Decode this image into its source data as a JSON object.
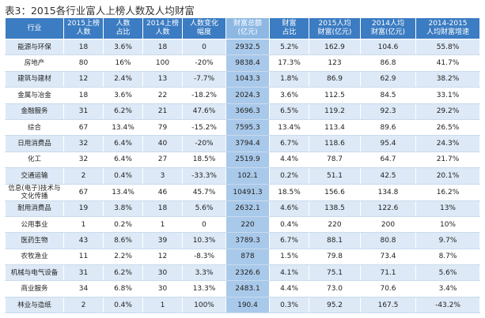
{
  "title": "表3：2015各行业富人上榜人数及人均财富",
  "table": {
    "header": [
      [
        "行业"
      ],
      [
        "2015上榜",
        "人数"
      ],
      [
        "人数",
        "占比"
      ],
      [
        "2014上榜",
        "人数"
      ],
      [
        "人数变化",
        "幅度"
      ],
      [
        "财富总额",
        "(亿元)"
      ],
      [
        "财富",
        "占比"
      ],
      [
        "2015人均",
        "财富(亿元)"
      ],
      [
        "2014人均",
        "财富(亿元)"
      ],
      [
        "2014-2015",
        "人均财富增速"
      ]
    ],
    "highlight_column": 5,
    "rows": [
      [
        "能源与环保",
        "18",
        "3.6%",
        "18",
        "0",
        "2932.5",
        "5.2%",
        "162.9",
        "104.6",
        "55.8%"
      ],
      [
        "房地产",
        "80",
        "16%",
        "100",
        "-20%",
        "9838.4",
        "17.3%",
        "123",
        "86.8",
        "41.7%"
      ],
      [
        "建筑与建材",
        "12",
        "2.4%",
        "13",
        "-7.7%",
        "1043.3",
        "1.8%",
        "86.9",
        "62.9",
        "38.2%"
      ],
      [
        "金属与冶金",
        "18",
        "3.6%",
        "22",
        "-18.2%",
        "2024.3",
        "3.6%",
        "112.5",
        "84.5",
        "33.1%"
      ],
      [
        "金融服务",
        "31",
        "6.2%",
        "21",
        "47.6%",
        "3696.3",
        "6.5%",
        "119.2",
        "92.3",
        "29.2%"
      ],
      [
        "综合",
        "67",
        "13.4%",
        "79",
        "-15.2%",
        "7595.3",
        "13.4%",
        "113.4",
        "89.6",
        "26.5%"
      ],
      [
        "日用消费品",
        "32",
        "6.4%",
        "40",
        "-20%",
        "3794.4",
        "6.7%",
        "118.6",
        "95.4",
        "24.3%"
      ],
      [
        "化工",
        "32",
        "6.4%",
        "27",
        "18.5%",
        "2519.9",
        "4.4%",
        "78.7",
        "64.7",
        "21.7%"
      ],
      [
        "交通运输",
        "2",
        "0.4%",
        "3",
        "-33.3%",
        "102.1",
        "0.2%",
        "51.1",
        "42.5",
        "20.1%"
      ],
      [
        "信息(电子)技术与文化传播",
        "67",
        "13.4%",
        "46",
        "45.7%",
        "10491.3",
        "18.5%",
        "156.6",
        "134.8",
        "16.2%"
      ],
      [
        "耐用消费品",
        "19",
        "3.8%",
        "18",
        "5.6%",
        "2632.1",
        "4.6%",
        "138.5",
        "122.6",
        "13%"
      ],
      [
        "公用事业",
        "1",
        "0.2%",
        "1",
        "0",
        "220",
        "0.4%",
        "220",
        "200",
        "10%"
      ],
      [
        "医药生物",
        "43",
        "8.6%",
        "39",
        "10.3%",
        "3789.3",
        "6.7%",
        "88.1",
        "80.8",
        "9.7%"
      ],
      [
        "农牧渔业",
        "11",
        "2.2%",
        "12",
        "-8.3%",
        "878",
        "1.5%",
        "79.8",
        "73.4",
        "8.7%"
      ],
      [
        "机械与电气设备",
        "31",
        "6.2%",
        "30",
        "3.3%",
        "2326.6",
        "4.1%",
        "75.1",
        "71.1",
        "5.6%"
      ],
      [
        "商业服务",
        "34",
        "6.8%",
        "30",
        "13.3%",
        "2483.1",
        "4.4%",
        "73.0",
        "70.6",
        "3.4%"
      ],
      [
        "林业与造纸",
        "2",
        "0.4%",
        "1",
        "100%",
        "190.4",
        "0.3%",
        "95.2",
        "167.5",
        "-43.2%"
      ]
    ]
  }
}
